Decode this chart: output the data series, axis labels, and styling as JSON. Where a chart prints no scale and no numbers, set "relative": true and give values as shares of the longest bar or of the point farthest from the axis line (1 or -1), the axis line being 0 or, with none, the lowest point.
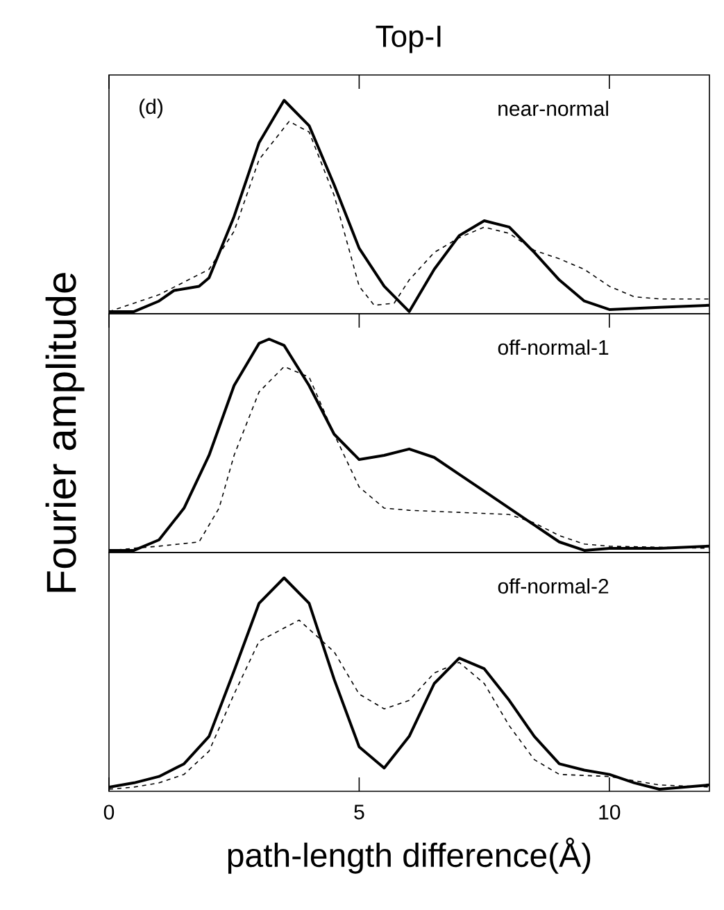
{
  "chart_data": [
    {
      "type": "line",
      "title": "Top-I",
      "relative": true,
      "tick_labels": false,
      "xlim": [
        0,
        12
      ],
      "xticks": [
        0,
        5,
        10
      ],
      "annotations": [
        "(d)",
        "near-normal"
      ],
      "series": [
        {
          "color": "#000000",
          "line_style": "solid",
          "x": [
            0,
            0.5,
            1,
            1.3,
            1.8,
            2,
            2.5,
            3,
            3.5,
            4,
            4.5,
            5,
            5.5,
            6,
            6.5,
            7,
            7.5,
            8,
            8.5,
            9,
            9.5,
            10,
            11,
            12
          ],
          "values": [
            0,
            0,
            0.05,
            0.1,
            0.12,
            0.16,
            0.45,
            0.8,
            1.0,
            0.88,
            0.6,
            0.3,
            0.12,
            0,
            0.2,
            0.36,
            0.43,
            0.4,
            0.28,
            0.15,
            0.05,
            0.01,
            0.02,
            0.03
          ]
        },
        {
          "color": "#000000",
          "line_style": "dashed",
          "x": [
            0,
            1,
            1.5,
            2,
            2.5,
            3,
            3.6,
            4,
            4.5,
            5,
            5.3,
            5.7,
            6,
            6.5,
            7,
            7.5,
            8,
            8.5,
            9,
            9.5,
            10,
            10.5,
            11,
            12
          ],
          "values": [
            0,
            0.08,
            0.14,
            0.2,
            0.38,
            0.72,
            0.9,
            0.85,
            0.55,
            0.12,
            0.03,
            0.04,
            0.15,
            0.28,
            0.35,
            0.4,
            0.37,
            0.29,
            0.25,
            0.2,
            0.12,
            0.07,
            0.06,
            0.06
          ]
        }
      ]
    },
    {
      "type": "line",
      "ylabel": "Fourier amplitude",
      "relative": true,
      "tick_labels": false,
      "xlim": [
        0,
        12
      ],
      "xticks": [
        0,
        5,
        10
      ],
      "annotations": [
        "off-normal-1"
      ],
      "series": [
        {
          "color": "#000000",
          "line_style": "solid",
          "x": [
            0,
            0.5,
            1,
            1.5,
            2,
            2.5,
            3,
            3.2,
            3.5,
            4,
            4.5,
            5,
            5.5,
            6,
            6.5,
            7,
            7.5,
            8,
            8.5,
            9,
            9.5,
            10,
            11,
            12
          ],
          "values": [
            0,
            0,
            0.05,
            0.2,
            0.45,
            0.78,
            0.98,
            1.0,
            0.97,
            0.78,
            0.55,
            0.43,
            0.45,
            0.48,
            0.44,
            0.36,
            0.28,
            0.2,
            0.12,
            0.04,
            0,
            0.01,
            0.01,
            0.02
          ]
        },
        {
          "color": "#000000",
          "line_style": "dashed",
          "x": [
            0,
            1,
            1.8,
            2.2,
            2.5,
            3,
            3.5,
            4,
            4.5,
            5,
            5.5,
            6,
            7,
            8,
            8.5,
            9,
            9.5,
            10,
            12
          ],
          "values": [
            0,
            0.02,
            0.04,
            0.2,
            0.45,
            0.75,
            0.87,
            0.82,
            0.55,
            0.3,
            0.2,
            0.19,
            0.18,
            0.17,
            0.13,
            0.07,
            0.03,
            0.02,
            0.01
          ]
        }
      ]
    },
    {
      "type": "line",
      "xlabel": "path-length difference(Å)",
      "relative": true,
      "tick_labels": "x",
      "xlim": [
        0,
        12
      ],
      "xticks": [
        0,
        5,
        10
      ],
      "annotations": [
        "off-normal-2"
      ],
      "series": [
        {
          "color": "#000000",
          "line_style": "solid",
          "x": [
            0,
            0.5,
            1,
            1.5,
            2,
            2.5,
            3,
            3.5,
            4,
            4.5,
            5,
            5.5,
            6,
            6.5,
            7,
            7.5,
            8,
            8.5,
            9,
            9.5,
            10,
            10.5,
            11,
            11.5,
            12
          ],
          "values": [
            0.01,
            0.03,
            0.06,
            0.12,
            0.25,
            0.56,
            0.88,
            1.0,
            0.88,
            0.52,
            0.2,
            0.1,
            0.25,
            0.5,
            0.62,
            0.57,
            0.42,
            0.25,
            0.12,
            0.09,
            0.07,
            0.03,
            0,
            0.01,
            0.02
          ]
        },
        {
          "color": "#000000",
          "line_style": "dashed",
          "x": [
            0,
            0.5,
            1,
            1.5,
            2,
            2.5,
            3,
            3.8,
            4.5,
            5,
            5.5,
            6,
            6.5,
            7,
            7.5,
            8,
            8.5,
            9,
            10,
            11,
            12
          ],
          "values": [
            0,
            0.01,
            0.03,
            0.07,
            0.18,
            0.45,
            0.7,
            0.8,
            0.65,
            0.45,
            0.38,
            0.42,
            0.55,
            0.6,
            0.5,
            0.3,
            0.14,
            0.07,
            0.06,
            0.02,
            0.01
          ]
        }
      ]
    }
  ]
}
